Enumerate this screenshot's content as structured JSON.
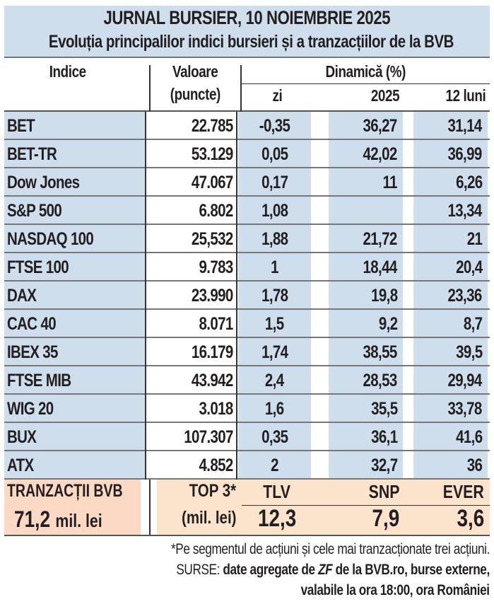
{
  "title": "JURNAL BURSIER, 10 NOIEMBRIE 2025",
  "subtitle": "Evoluția principalilor indici bursieri și a tranzacțiilor de la BVB",
  "headers": {
    "indice": "Indice",
    "valoare": "Valoare",
    "puncte": "(puncte)",
    "dinamica": "Dinamică (%)",
    "zi": "zi",
    "y2025": "2025",
    "luni12": "12 luni"
  },
  "rows": [
    {
      "name": "BET",
      "value": "22.785",
      "zi": "-0,35",
      "y2025": "36,27",
      "m12": "31,14"
    },
    {
      "name": "BET-TR",
      "value": "53.129",
      "zi": "0,05",
      "y2025": "42,02",
      "m12": "36,99"
    },
    {
      "name": "Dow Jones",
      "value": "47.067",
      "zi": "0,17",
      "y2025": "11",
      "m12": "6,26"
    },
    {
      "name": "S&P 500",
      "value": "6.802",
      "zi": "1,08",
      "y2025": "",
      "m12": "13,34"
    },
    {
      "name": "NASDAQ 100",
      "value": "25,532",
      "zi": "1,88",
      "y2025": "21,72",
      "m12": "21"
    },
    {
      "name": "FTSE 100",
      "value": "9.783",
      "zi": "1",
      "y2025": "18,44",
      "m12": "20,4"
    },
    {
      "name": "DAX",
      "value": "23.990",
      "zi": "1,78",
      "y2025": "19,8",
      "m12": "23,36"
    },
    {
      "name": "CAC 40",
      "value": "8.071",
      "zi": "1,5",
      "y2025": "9,2",
      "m12": "8,7"
    },
    {
      "name": "IBEX 35",
      "value": "16.179",
      "zi": "1,74",
      "y2025": "38,55",
      "m12": "39,5"
    },
    {
      "name": "FTSE MIB",
      "value": "43.942",
      "zi": "2,4",
      "y2025": "28,53",
      "m12": "29,94"
    },
    {
      "name": "WIG 20",
      "value": "3.018",
      "zi": "1,6",
      "y2025": "35,5",
      "m12": "33,78"
    },
    {
      "name": "BUX",
      "value": "107.307",
      "zi": "0,35",
      "y2025": "36,1",
      "m12": "41,6"
    },
    {
      "name": "ATX",
      "value": "4.852",
      "zi": "2",
      "y2025": "32,7",
      "m12": "36"
    }
  ],
  "bvb": {
    "label": "TRANZACȚII BVB",
    "total": "71,2",
    "unit": "mil. lei",
    "top": "TOP 3*",
    "top_unit": "(mil. lei)",
    "stocks": [
      {
        "sym": "TLV",
        "val": "12,3"
      },
      {
        "sym": "SNP",
        "val": "7,9"
      },
      {
        "sym": "EVER",
        "val": "3,6"
      }
    ]
  },
  "footnote": "*Pe segmentul de acțiuni și cele mai tranzacționate trei acțiuni.",
  "sources_label": "SURSE:",
  "sources_1a": "date agregate de ",
  "sources_zf": "ZF",
  "sources_1b": " de la BVB.ro, burse externe,",
  "sources_2": "valabile la ora 18:00, ora României"
}
